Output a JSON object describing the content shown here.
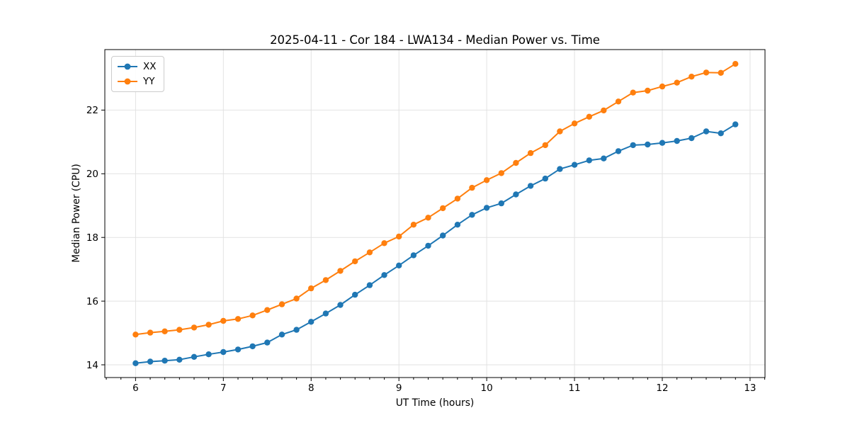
{
  "chart_data": {
    "type": "line",
    "title": "2025-04-11 - Cor 184 - LWA134 - Median Power vs. Time",
    "xlabel": "UT Time (hours)",
    "ylabel": "Median Power (CPU)",
    "xlim": [
      5.65,
      13.17
    ],
    "ylim": [
      13.6,
      23.9
    ],
    "x_ticks": [
      6,
      7,
      8,
      9,
      10,
      11,
      12,
      13
    ],
    "y_ticks": [
      14,
      16,
      18,
      20,
      22
    ],
    "x_minor_tick_step": 0.16667,
    "grid": true,
    "grid_color": "#e2e2e2",
    "legend_position": "upper left",
    "x": [
      6.0,
      6.167,
      6.333,
      6.5,
      6.667,
      6.833,
      7.0,
      7.167,
      7.333,
      7.5,
      7.667,
      7.833,
      8.0,
      8.167,
      8.333,
      8.5,
      8.667,
      8.833,
      9.0,
      9.167,
      9.333,
      9.5,
      9.667,
      9.833,
      10.0,
      10.167,
      10.333,
      10.5,
      10.667,
      10.833,
      11.0,
      11.167,
      11.333,
      11.5,
      11.667,
      11.833,
      12.0,
      12.167,
      12.333,
      12.5,
      12.667,
      12.833
    ],
    "series": [
      {
        "name": "XX",
        "color": "#1f77b4",
        "values": [
          14.05,
          14.1,
          14.13,
          14.16,
          14.25,
          14.33,
          14.4,
          14.48,
          14.58,
          14.7,
          14.95,
          15.1,
          15.35,
          15.61,
          15.88,
          16.2,
          16.5,
          16.82,
          17.12,
          17.44,
          17.74,
          18.06,
          18.4,
          18.71,
          18.93,
          19.07,
          19.35,
          19.62,
          19.85,
          20.15,
          20.28,
          20.42,
          20.48,
          20.71,
          20.9,
          20.92,
          20.97,
          21.03,
          21.12,
          21.33,
          21.27,
          21.55
        ]
      },
      {
        "name": "YY",
        "color": "#ff7f0e",
        "values": [
          14.95,
          15.01,
          15.05,
          15.1,
          15.17,
          15.26,
          15.38,
          15.44,
          15.55,
          15.72,
          15.9,
          16.08,
          16.4,
          16.66,
          16.95,
          17.25,
          17.53,
          17.82,
          18.03,
          18.4,
          18.62,
          18.92,
          19.22,
          19.56,
          19.8,
          20.02,
          20.34,
          20.65,
          20.9,
          21.33,
          21.58,
          21.79,
          21.99,
          22.27,
          22.55,
          22.61,
          22.74,
          22.86,
          23.05,
          23.18,
          23.17,
          23.45
        ]
      }
    ]
  }
}
